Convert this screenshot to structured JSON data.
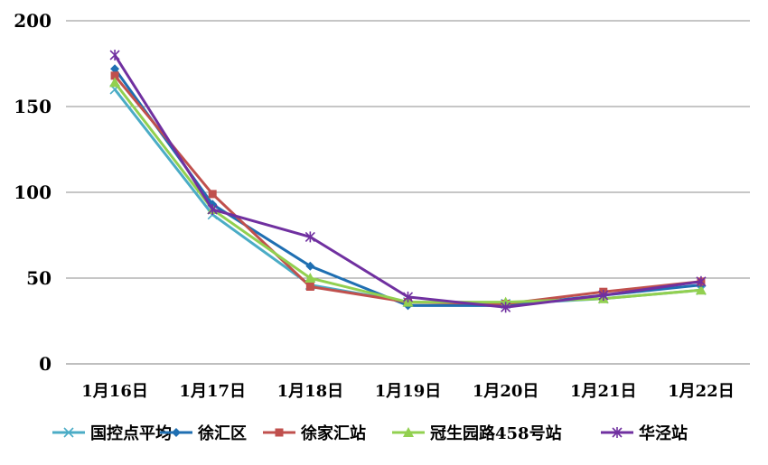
{
  "chart_data": {
    "type": "line",
    "categories": [
      "1月16日",
      "1月17日",
      "1月18日",
      "1月19日",
      "1月20日",
      "1月21日",
      "1月22日"
    ],
    "ylim": [
      0,
      200
    ],
    "yticks": [
      "0",
      "50",
      "100",
      "150",
      "200"
    ],
    "grid": true,
    "legend_position": "bottom",
    "series": [
      {
        "name": "国控点平均",
        "color": "#4BACC6",
        "marker": "x",
        "values": [
          160,
          87,
          46,
          36,
          35,
          38,
          43
        ]
      },
      {
        "name": "徐汇区",
        "color": "#1F6FB2",
        "marker": "diamond",
        "values": [
          172,
          93,
          57,
          34,
          34,
          40,
          46
        ]
      },
      {
        "name": "徐家汇站",
        "color": "#C0504D",
        "marker": "square",
        "values": [
          168,
          99,
          45,
          36,
          35,
          42,
          48
        ]
      },
      {
        "name": "冠生园路458号站",
        "color": "#92D050",
        "marker": "triangle",
        "values": [
          164,
          90,
          50,
          36,
          36,
          38,
          43
        ]
      },
      {
        "name": "华泾站",
        "color": "#7030A0",
        "marker": "star",
        "values": [
          180,
          90,
          74,
          39,
          33,
          40,
          48
        ]
      }
    ]
  }
}
